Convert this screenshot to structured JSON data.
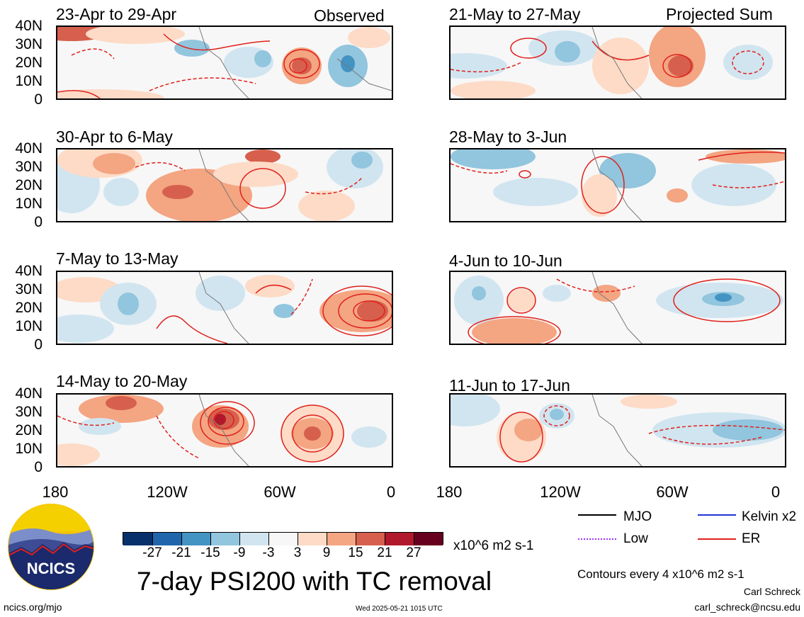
{
  "panels": [
    {
      "period": "23-Apr to 29-Apr",
      "tag": "Observed"
    },
    {
      "period": "30-Apr to 6-May",
      "tag": ""
    },
    {
      "period": "7-May to 13-May",
      "tag": ""
    },
    {
      "period": "14-May to 20-May",
      "tag": ""
    },
    {
      "period": "21-May to 27-May",
      "tag": "Projected Sum"
    },
    {
      "period": "28-May to 3-Jun",
      "tag": ""
    },
    {
      "period": "4-Jun to 10-Jun",
      "tag": ""
    },
    {
      "period": "11-Jun to 17-Jun",
      "tag": ""
    }
  ],
  "axes": {
    "y_ticks": [
      "40N",
      "30N",
      "20N",
      "10N",
      "0"
    ],
    "x_ticks": [
      "180",
      "120W",
      "60W",
      "0"
    ]
  },
  "colorbar": {
    "levels": [
      "-27",
      "-21",
      "-15",
      "-9",
      "-3",
      "3",
      "9",
      "15",
      "21",
      "27"
    ],
    "colors": [
      "#08306b",
      "#2166ac",
      "#4393c3",
      "#92c5de",
      "#d1e5f0",
      "#f7f7f7",
      "#fddbc7",
      "#f4a582",
      "#d6604d",
      "#b2182b",
      "#67001f"
    ],
    "units": "x10^6 m2 s-1"
  },
  "legend": {
    "items": [
      {
        "label": "MJO",
        "color": "#000000",
        "style": "solid"
      },
      {
        "label": "Kelvin x2",
        "color": "#1f35d8",
        "style": "solid"
      },
      {
        "label": "Low",
        "color": "#9b30ff",
        "style": "dotted"
      },
      {
        "label": "ER",
        "color": "#e0201b",
        "style": "solid"
      }
    ],
    "contour_note": "Contours every 4 x10^6 m2 s-1"
  },
  "footer": {
    "title": "7-day PSI200 with TC removal",
    "logo_text": "NCICS",
    "url": "ncics.org/mjo",
    "timestamp": "Wed 2025-05-21 1015 UTC",
    "author": "Carl Schreck",
    "email": "carl_schreck@ncsu.edu"
  }
}
